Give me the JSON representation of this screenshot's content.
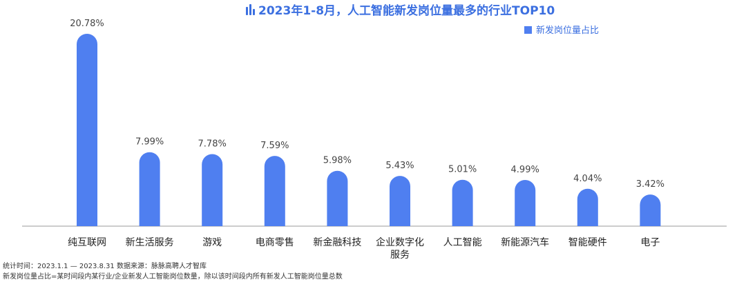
{
  "chart_data": {
    "type": "bar",
    "title": "2023年1-8月，人工智能新发岗位量最多的行业TOP10",
    "legend": {
      "position": "top-right",
      "entries": [
        "新发岗位量占比"
      ]
    },
    "series": [
      {
        "name": "新发岗位量占比",
        "color": "#4f7ff0",
        "values": [
          20.78,
          7.99,
          7.78,
          7.59,
          5.98,
          5.43,
          5.01,
          4.99,
          4.04,
          3.42
        ],
        "labels": [
          "20.78%",
          "7.99%",
          "7.78%",
          "7.59%",
          "5.98%",
          "5.43%",
          "5.01%",
          "4.99%",
          "4.04%",
          "3.42%"
        ]
      }
    ],
    "categories": [
      [
        "纯互联网"
      ],
      [
        "新生活服务"
      ],
      [
        "游戏"
      ],
      [
        "电商零售"
      ],
      [
        "新金融科技"
      ],
      [
        "企业数字化",
        "服务"
      ],
      [
        "人工智能"
      ],
      [
        "新能源汽车"
      ],
      [
        "智能硬件"
      ],
      [
        "电子"
      ]
    ],
    "ylim": [
      0,
      21.5
    ],
    "grid": false,
    "title_icon": "bar-chart-icon"
  },
  "footnotes": {
    "line1": "统计时间：2023.1.1 — 2023.8.31  数据来源：脉脉高聘人才智库",
    "line2": "新发岗位量占比=某时间段内某行业/企业新发人工智能岗位数量，除以该时间段内所有新发人工智能岗位量总数"
  },
  "colors": {
    "accent": "#3b6fe0",
    "bar": "#4f7ff0",
    "axis": "#999999"
  }
}
